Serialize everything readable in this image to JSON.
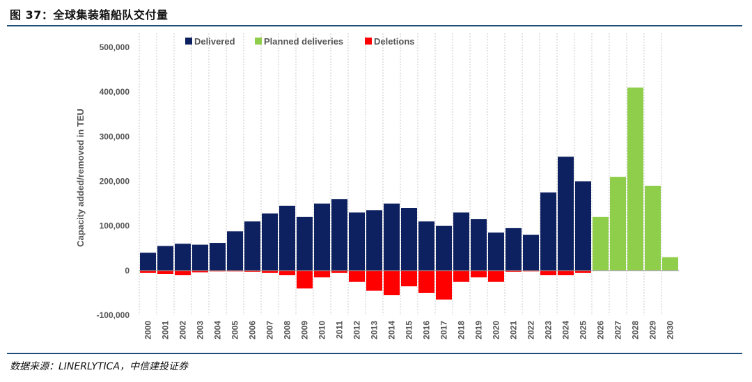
{
  "figure": {
    "title": "图 37：全球集装箱船队交付量",
    "source": "数据来源：LINERLYTICA，中信建投证券"
  },
  "chart_data": {
    "type": "bar",
    "title": "全球集装箱船队交付量",
    "ylabel": "Capacity added/removed in TEU",
    "xlabel": "",
    "ylim": [
      -100000,
      520000
    ],
    "yticks": [
      -100000,
      0,
      100000,
      200000,
      300000,
      400000,
      500000
    ],
    "ytick_labels": [
      "-100,000",
      "0",
      "100,000",
      "200,000",
      "300,000",
      "400,000",
      "500,000"
    ],
    "categories": [
      "2000",
      "2001",
      "2002",
      "2003",
      "2004",
      "2005",
      "2006",
      "2007",
      "2008",
      "2009",
      "2010",
      "2011",
      "2012",
      "2013",
      "2014",
      "2015",
      "2016",
      "2017",
      "2018",
      "2019",
      "2020",
      "2021",
      "2022",
      "2023",
      "2024",
      "2025",
      "2026",
      "2027",
      "2028",
      "2029",
      "2030"
    ],
    "legend": [
      "Delivered",
      "Planned deliveries",
      "Deletions"
    ],
    "colors": {
      "Delivered": "#0d2160",
      "Planned deliveries": "#8fce4a",
      "Deletions": "#ff0000"
    },
    "series": [
      {
        "name": "Delivered",
        "values": [
          40000,
          55000,
          60000,
          58000,
          62000,
          88000,
          110000,
          128000,
          145000,
          120000,
          150000,
          160000,
          130000,
          135000,
          150000,
          140000,
          110000,
          100000,
          130000,
          115000,
          85000,
          95000,
          80000,
          175000,
          255000,
          200000,
          0,
          0,
          0,
          0,
          0
        ]
      },
      {
        "name": "Planned deliveries",
        "values": [
          0,
          0,
          0,
          0,
          0,
          0,
          0,
          0,
          0,
          0,
          0,
          0,
          0,
          0,
          0,
          0,
          0,
          0,
          0,
          0,
          0,
          0,
          0,
          0,
          0,
          0,
          120000,
          210000,
          410000,
          190000,
          30000
        ]
      },
      {
        "name": "Deletions",
        "values": [
          -5000,
          -8000,
          -10000,
          -4000,
          -2000,
          -2000,
          -3000,
          -5000,
          -10000,
          -40000,
          -15000,
          -5000,
          -25000,
          -45000,
          -55000,
          -35000,
          -50000,
          -65000,
          -25000,
          -15000,
          -25000,
          -3000,
          -2000,
          -10000,
          -10000,
          -5000,
          0,
          0,
          0,
          0,
          0
        ]
      }
    ]
  }
}
